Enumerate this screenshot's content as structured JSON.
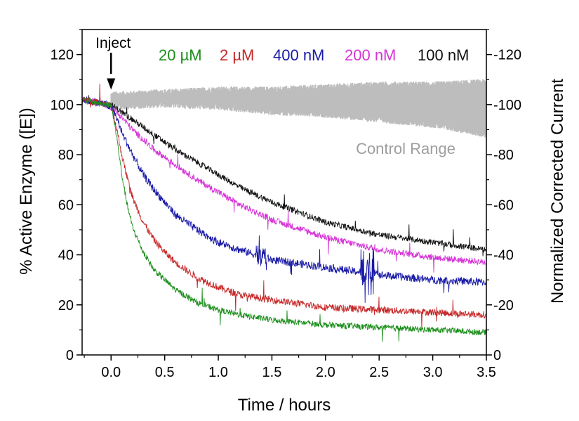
{
  "chart_data": {
    "type": "line",
    "xlabel": "Time / hours",
    "ylabel_left": "% Active Enzyme ([E])",
    "ylabel_right": "Normalized Corrected Current",
    "xlim": [
      -0.27,
      3.5
    ],
    "ylim_left": [
      0,
      130
    ],
    "ylim_right": [
      0,
      -130
    ],
    "x_ticks": [
      "0.0",
      "0.5",
      "1.0",
      "1.5",
      "2.0",
      "2.5",
      "3.0",
      "3.5"
    ],
    "x_tick_values": [
      0,
      0.5,
      1.0,
      1.5,
      2.0,
      2.5,
      3.0,
      3.5
    ],
    "y_ticks_left": [
      "0",
      "20",
      "40",
      "60",
      "80",
      "100",
      "120"
    ],
    "y_tick_values_left": [
      0,
      20,
      40,
      60,
      80,
      100,
      120
    ],
    "y_ticks_right": [
      "0",
      "-20",
      "-40",
      "-60",
      "-80",
      "-100",
      "-120"
    ],
    "grid": false,
    "legend_placement": "top",
    "annotation": {
      "text": "Inject",
      "x": 0.0,
      "arrow_y": 106
    },
    "control_band": {
      "label": "Control Range",
      "color": "#bdbdbd",
      "x": [
        0.0,
        0.5,
        1.0,
        1.5,
        2.0,
        2.5,
        3.0,
        3.5
      ],
      "upper": [
        104,
        105,
        106,
        106,
        107,
        108,
        108,
        109
      ],
      "lower": [
        99,
        100,
        99,
        97,
        96,
        94,
        92,
        88
      ]
    },
    "series": [
      {
        "name": "20 µM",
        "color": "#1c8f1c",
        "x": [
          -0.27,
          -0.15,
          -0.05,
          0.0,
          0.05,
          0.1,
          0.15,
          0.2,
          0.3,
          0.4,
          0.5,
          0.6,
          0.8,
          1.0,
          1.2,
          1.5,
          2.0,
          2.5,
          3.0,
          3.5
        ],
        "y": [
          102,
          101,
          100,
          100,
          88,
          72,
          60,
          51,
          41,
          34,
          30,
          26,
          21,
          18,
          16,
          14,
          12,
          11,
          10,
          9
        ]
      },
      {
        "name": "2 µM",
        "color": "#c62828",
        "x": [
          -0.27,
          -0.15,
          -0.05,
          0.0,
          0.05,
          0.1,
          0.15,
          0.2,
          0.3,
          0.4,
          0.5,
          0.6,
          0.8,
          1.0,
          1.2,
          1.5,
          2.0,
          2.5,
          3.0,
          3.5
        ],
        "y": [
          102,
          101,
          100,
          100,
          91,
          80,
          71,
          63,
          53,
          46,
          41,
          37,
          31,
          27,
          24,
          22,
          19,
          18,
          17,
          16
        ]
      },
      {
        "name": "400 nM",
        "color": "#1a1aa8",
        "x": [
          -0.27,
          -0.15,
          -0.05,
          0.0,
          0.05,
          0.1,
          0.2,
          0.3,
          0.4,
          0.5,
          0.6,
          0.8,
          1.0,
          1.2,
          1.5,
          2.0,
          2.5,
          3.0,
          3.5
        ],
        "y": [
          102,
          101,
          100,
          99,
          95,
          89,
          80,
          72,
          66,
          61,
          56,
          50,
          45,
          42,
          38,
          35,
          32,
          30,
          29
        ]
      },
      {
        "name": "200 nM",
        "color": "#d633d6",
        "x": [
          -0.27,
          -0.15,
          -0.05,
          0.0,
          0.1,
          0.2,
          0.3,
          0.4,
          0.5,
          0.6,
          0.8,
          1.0,
          1.2,
          1.5,
          2.0,
          2.5,
          3.0,
          3.5
        ],
        "y": [
          102,
          101,
          100,
          99,
          95,
          90,
          86,
          82,
          79,
          76,
          70,
          65,
          60,
          54,
          47,
          42,
          39,
          37
        ]
      },
      {
        "name": "100 nM",
        "color": "#111111",
        "x": [
          -0.27,
          -0.15,
          -0.05,
          0.0,
          0.1,
          0.2,
          0.3,
          0.4,
          0.5,
          0.6,
          0.8,
          1.0,
          1.2,
          1.5,
          2.0,
          2.5,
          3.0,
          3.5
        ],
        "y": [
          102,
          101,
          100,
          100,
          97,
          94,
          91,
          88,
          85,
          82,
          77,
          72,
          67,
          61,
          53,
          48,
          45,
          42
        ]
      }
    ]
  }
}
